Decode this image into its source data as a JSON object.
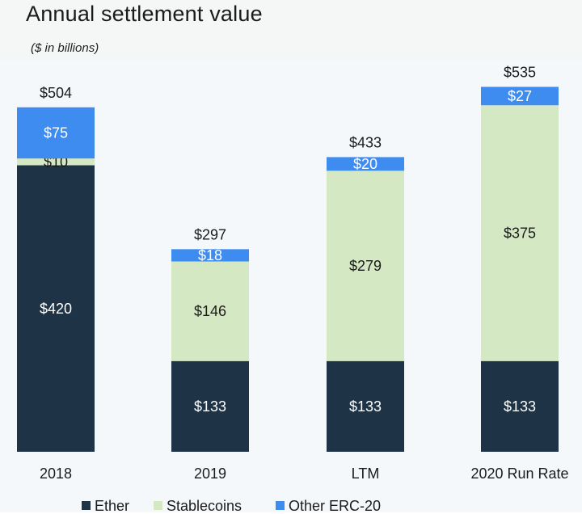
{
  "title": "Annual settlement value",
  "subtitle": "($ in billions)",
  "chart_data": {
    "type": "bar",
    "stacked": true,
    "categories": [
      "2018",
      "2019",
      "LTM",
      "2020 Run Rate"
    ],
    "series": [
      {
        "name": "Ether",
        "color": "#1f3347",
        "values": [
          420,
          133,
          133,
          133
        ],
        "labels": [
          "$420",
          "$133",
          "$133",
          "$133"
        ]
      },
      {
        "name": "Stablecoins",
        "color": "#d5e8c4",
        "values": [
          10,
          146,
          279,
          375
        ],
        "labels": [
          "$10",
          "$146",
          "$279",
          "$375"
        ]
      },
      {
        "name": "Other ERC-20",
        "color": "#3f8cf0",
        "values": [
          75,
          18,
          20,
          27
        ],
        "labels": [
          "$75",
          "$18",
          "$20",
          "$27"
        ]
      }
    ],
    "totals": [
      504,
      297,
      433,
      535
    ],
    "total_labels": [
      "$504",
      "$297",
      "$433",
      "$535"
    ],
    "ylim": [
      0,
      560
    ],
    "grid": false,
    "legend_position": "bottom"
  }
}
